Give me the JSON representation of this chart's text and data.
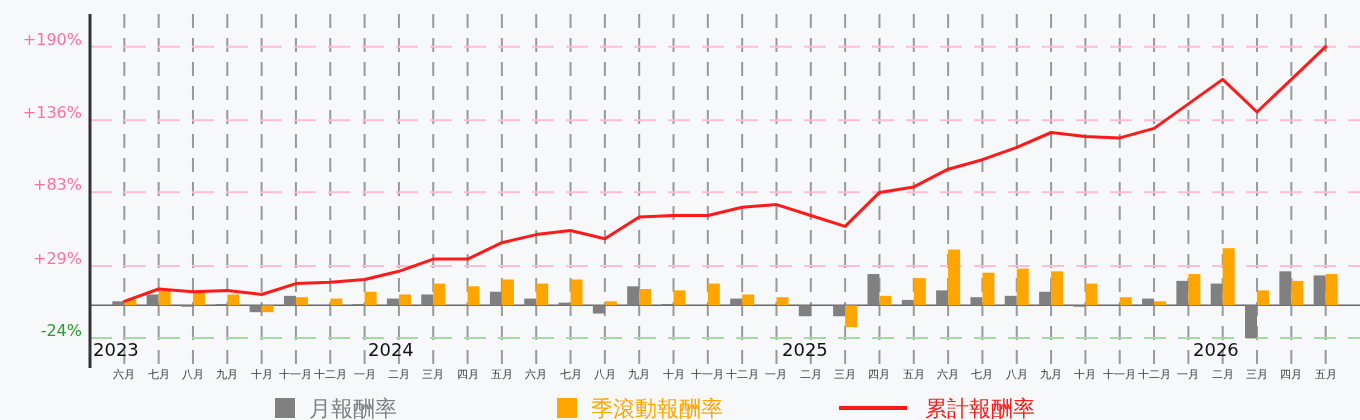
{
  "chart_data": {
    "type": "bar",
    "categories": [
      "六月",
      "七月",
      "八月",
      "九月",
      "十月",
      "十一月",
      "十二月",
      "一月",
      "二月",
      "三月",
      "四月",
      "五月",
      "六月",
      "七月",
      "八月",
      "九月",
      "十月",
      "十一月",
      "十二月",
      "一月",
      "二月",
      "三月",
      "四月",
      "五月",
      "六月",
      "七月",
      "八月",
      "九月",
      "十月",
      "十一月",
      "十二月",
      "一月",
      "二月",
      "三月",
      "四月",
      "五月"
    ],
    "series": [
      {
        "name": "月報酬率",
        "color": "#808080",
        "values": [
          3,
          8,
          -1,
          1,
          -5,
          7,
          0,
          1,
          5,
          8,
          0,
          10,
          5,
          2,
          -6,
          14,
          1,
          0,
          5,
          0,
          -8,
          -8,
          23,
          4,
          11,
          6,
          7,
          10,
          -1,
          0,
          5,
          18,
          16,
          -24,
          25,
          22
        ]
      },
      {
        "name": "季滾動報酬率",
        "color": "#ffa500",
        "values": [
          4,
          11,
          10,
          8,
          -5,
          6,
          5,
          10,
          8,
          16,
          14,
          19,
          16,
          19,
          3,
          12,
          11,
          16,
          8,
          6,
          0,
          -16,
          7,
          20,
          41,
          24,
          27,
          25,
          16,
          6,
          3,
          23,
          42,
          11,
          18,
          23
        ]
      },
      {
        "name": "累計報酬率",
        "type": "line",
        "color": "#ff1a1a",
        "values": [
          3,
          12,
          10,
          11,
          8,
          16,
          17,
          19,
          25,
          34,
          34,
          46,
          52,
          55,
          49,
          65,
          66,
          66,
          72,
          74,
          66,
          58,
          83,
          87,
          100,
          107,
          116,
          127,
          124,
          123,
          130,
          148,
          166,
          142,
          166,
          190
        ]
      }
    ],
    "ylim": [
      -46,
      214
    ],
    "ref_lines": [
      {
        "axis": "y",
        "value": -24,
        "color": "#a8d8a8",
        "line_style": "dashed"
      }
    ],
    "yticks": [
      {
        "value": -24,
        "label": "-24%"
      },
      {
        "value": 29,
        "label": "+29%"
      },
      {
        "value": 83,
        "label": "+83%"
      },
      {
        "value": 136,
        "label": "+136%"
      },
      {
        "value": 190,
        "label": "+190%"
      }
    ],
    "annotations": [
      "2023",
      "2024",
      "2025",
      "2026"
    ],
    "grid": true,
    "legend": "bottom"
  }
}
